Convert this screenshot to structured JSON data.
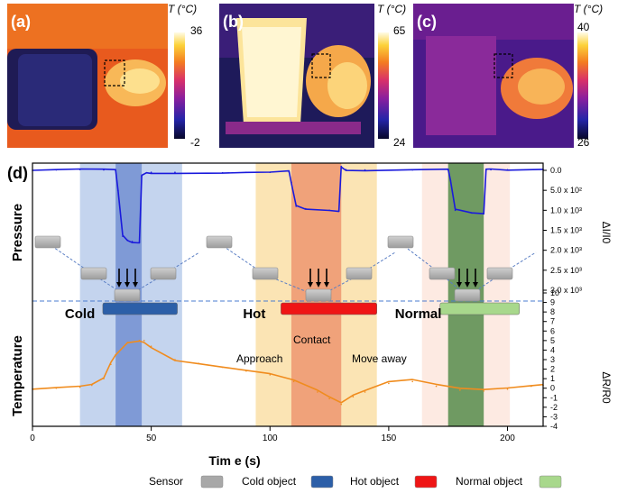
{
  "thermal_panels": [
    {
      "letter": "(a)",
      "unit_label": "T (°C)",
      "max": "36",
      "min": "-2",
      "scene": "hand approaching cold dark object"
    },
    {
      "letter": "(b)",
      "unit_label": "T (°C)",
      "max": "65",
      "min": "24",
      "scene": "hand near hot beaker"
    },
    {
      "letter": "(c)",
      "unit_label": "T (°C)",
      "max": "40",
      "min": "26",
      "scene": "hand near room-temperature block"
    }
  ],
  "chart_data": {
    "type": "line",
    "panel_letter": "(d)",
    "xlabel": "Tim e (s)",
    "xlim": [
      0,
      215
    ],
    "x_ticks": [
      "0",
      "50",
      "100",
      "150",
      "200"
    ],
    "ylabel_top": "Pressure",
    "ylabel_bottom": "Temperature",
    "right_axis_top": {
      "label": "ΔI/I0",
      "ticks": [
        "0.0",
        "5.0 x 10²",
        "1.0 x 10³",
        "1.5 x 10³",
        "2.0 x 10³",
        "2.5 x 10³",
        "3.0 x 10³"
      ],
      "range": [
        0,
        3000
      ],
      "inverted": true
    },
    "right_axis_bottom": {
      "label": "ΔR/R0",
      "ticks": [
        "10",
        "9",
        "8",
        "7",
        "6",
        "5",
        "4",
        "3",
        "2",
        "1",
        "0",
        "-1",
        "-2",
        "-3",
        "-4"
      ],
      "range": [
        -4,
        10
      ]
    },
    "series": [
      {
        "color": "#1a1adc",
        "x": [
          0,
          10,
          20,
          30,
          35,
          36,
          38,
          40,
          42,
          45,
          46,
          48,
          50,
          60,
          80,
          90,
          100,
          108,
          109,
          111,
          115,
          125,
          129,
          130,
          132,
          140,
          160,
          175,
          176,
          178,
          185,
          190,
          191,
          193,
          200,
          215
        ],
        "values": [
          0,
          -10,
          -20,
          -10,
          0,
          500,
          1650,
          1750,
          1780,
          1800,
          150,
          60,
          50,
          50,
          60,
          50,
          50,
          40,
          300,
          900,
          960,
          1000,
          1020,
          -100,
          -20,
          -10,
          -10,
          -10,
          250,
          1000,
          1070,
          1090,
          -10,
          -15,
          -15,
          -20
        ]
      },
      {
        "color": "#f08c1e",
        "x": [
          0,
          10,
          20,
          25,
          30,
          33,
          35,
          40,
          45,
          47,
          50,
          60,
          70,
          80,
          90,
          100,
          110,
          120,
          125,
          130,
          135,
          140,
          150,
          160,
          170,
          180,
          190,
          200,
          210,
          215
        ],
        "values": [
          -0.1,
          0,
          0.1,
          0.3,
          1.0,
          2.5,
          3.5,
          4.8,
          5.0,
          5.0,
          4.4,
          3.0,
          2.6,
          2.2,
          1.8,
          1.4,
          0.7,
          -0.4,
          -1.1,
          -1.7,
          -0.9,
          -0.4,
          0.5,
          0.7,
          0.2,
          -0.2,
          -0.3,
          -0.1,
          0.2,
          0.3
        ]
      }
    ],
    "shaded_regions": [
      {
        "x": [
          20,
          63
        ],
        "color": "#c4d4ee"
      },
      {
        "x": [
          35,
          46
        ],
        "color": "#7f9ad6"
      },
      {
        "x": [
          94,
          145
        ],
        "color": "#fbe4b4"
      },
      {
        "x": [
          109,
          130
        ],
        "color": "#f0a27a"
      },
      {
        "x": [
          164,
          201
        ],
        "color": "#fdeae2"
      },
      {
        "x": [
          175,
          190
        ],
        "color": "#6f9a62"
      }
    ],
    "object_labels": [
      {
        "text": "Cold",
        "bar_x": [
          22,
          61
        ],
        "color": "#2c5fa8"
      },
      {
        "text": "Hot",
        "bar_x": [
          97,
          145
        ],
        "color": "#ef1515"
      },
      {
        "text": "Normal",
        "bar_x": [
          164,
          205
        ],
        "color": "#a8d88c"
      }
    ],
    "annotations": [
      "Approach",
      "Contact",
      "Move away"
    ],
    "legend": {
      "position": "bottom",
      "items": [
        {
          "label": "Sensor",
          "color": "#a8a8a8"
        },
        {
          "label": "Cold object",
          "color": "#2c5fa8"
        },
        {
          "label": "Hot object",
          "color": "#ef1515"
        },
        {
          "label": "Normal object",
          "color": "#a8d88c"
        }
      ]
    }
  }
}
